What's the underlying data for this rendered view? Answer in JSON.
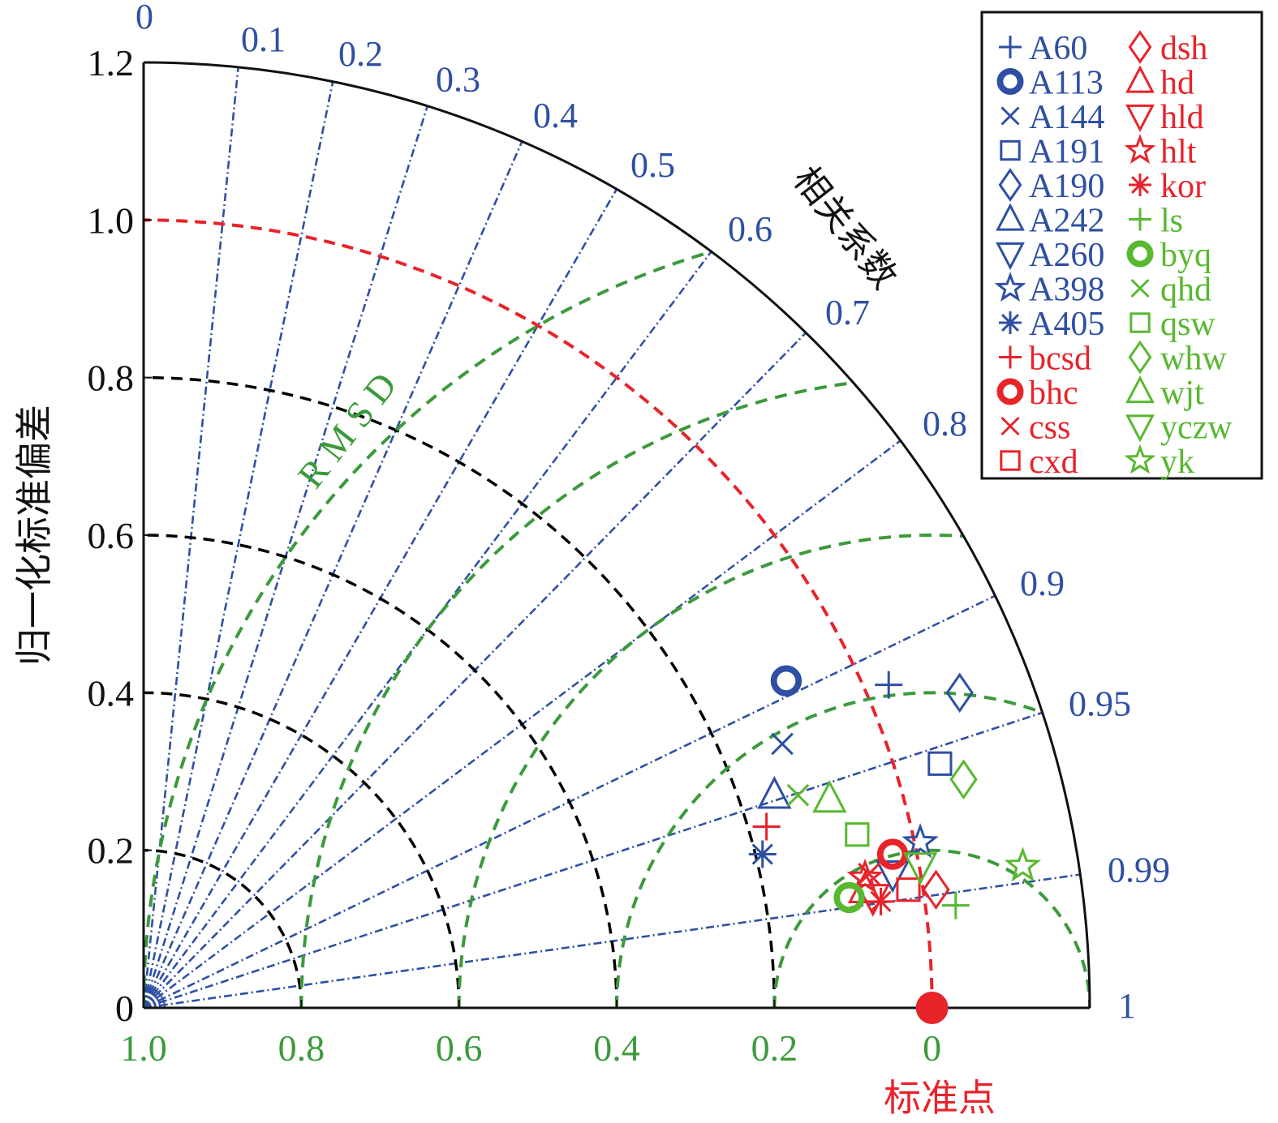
{
  "chart_data": {
    "type": "scatter",
    "subtype": "taylor-diagram",
    "ylabel": "归一化标准偏差",
    "corr_axis_label": "相关系数",
    "rmsd_label": "R M S D",
    "ref_label": "标准点",
    "reference_point": {
      "std": 1.0,
      "corr": 1.0,
      "color": "#e8232a"
    },
    "std_max": 1.2,
    "std_ticks": [
      "0",
      "0.2",
      "0.4",
      "0.6",
      "0.8",
      "1.0",
      "1.2"
    ],
    "std_tick_values": [
      0,
      0.2,
      0.4,
      0.6,
      0.8,
      1.0,
      1.2
    ],
    "corr_ticks": [
      "0",
      "0.1",
      "0.2",
      "0.3",
      "0.4",
      "0.5",
      "0.6",
      "0.7",
      "0.8",
      "0.9",
      "0.95",
      "0.99",
      "1"
    ],
    "corr_tick_values": [
      0,
      0.1,
      0.2,
      0.3,
      0.4,
      0.5,
      0.6,
      0.7,
      0.8,
      0.9,
      0.95,
      0.99,
      1
    ],
    "rmsd_ticks": [
      "1.0",
      "0.8",
      "0.6",
      "0.4",
      "0.2",
      "0"
    ],
    "rmsd_tick_values": [
      1.0,
      0.8,
      0.6,
      0.4,
      0.2,
      0
    ],
    "rmsd_arcs": [
      0.2,
      0.4,
      0.6,
      0.8,
      1.0
    ],
    "std_arcs": [
      0.2,
      0.4,
      0.6,
      0.8
    ],
    "colors": {
      "blue": "#2e4fa3",
      "red": "#e8232a",
      "green": "#58b830",
      "rmsd": "#3b9a3b",
      "black": "#000000"
    },
    "series": [
      {
        "name": "A60",
        "group": "blue",
        "marker": "plus",
        "x": 0.945,
        "y": 0.41
      },
      {
        "name": "A113",
        "group": "blue",
        "marker": "circle-bold",
        "x": 0.815,
        "y": 0.415
      },
      {
        "name": "A144",
        "group": "blue",
        "marker": "x",
        "x": 0.81,
        "y": 0.335
      },
      {
        "name": "A191",
        "group": "blue",
        "marker": "square",
        "x": 1.01,
        "y": 0.31
      },
      {
        "name": "A190",
        "group": "blue",
        "marker": "diamond",
        "x": 1.035,
        "y": 0.4
      },
      {
        "name": "A242",
        "group": "blue",
        "marker": "triangle",
        "x": 0.8,
        "y": 0.27
      },
      {
        "name": "A260",
        "group": "blue",
        "marker": "tri-down",
        "x": 0.95,
        "y": 0.17
      },
      {
        "name": "A398",
        "group": "blue",
        "marker": "star",
        "x": 0.985,
        "y": 0.21
      },
      {
        "name": "A405",
        "group": "blue",
        "marker": "asterisk",
        "x": 0.785,
        "y": 0.195
      },
      {
        "name": "bcsd",
        "group": "red",
        "marker": "plus",
        "x": 0.79,
        "y": 0.23
      },
      {
        "name": "bhc",
        "group": "red",
        "marker": "circle-bold",
        "x": 0.95,
        "y": 0.195
      },
      {
        "name": "css",
        "group": "red",
        "marker": "x",
        "x": 0.92,
        "y": 0.17
      },
      {
        "name": "cxd",
        "group": "red",
        "marker": "square",
        "x": 0.97,
        "y": 0.15
      },
      {
        "name": "dsh",
        "group": "red",
        "marker": "diamond",
        "x": 1.005,
        "y": 0.15
      },
      {
        "name": "hd",
        "group": "red",
        "marker": "triangle",
        "x": 0.915,
        "y": 0.15
      },
      {
        "name": "hld",
        "group": "red",
        "marker": "tri-down",
        "x": 0.925,
        "y": 0.14
      },
      {
        "name": "hlt",
        "group": "red",
        "marker": "star",
        "x": 0.915,
        "y": 0.165
      },
      {
        "name": "kor",
        "group": "red",
        "marker": "asterisk",
        "x": 0.935,
        "y": 0.135
      },
      {
        "name": "ls",
        "group": "green",
        "marker": "plus",
        "x": 1.03,
        "y": 0.13
      },
      {
        "name": "byq",
        "group": "green",
        "marker": "circle-bold",
        "x": 0.895,
        "y": 0.14
      },
      {
        "name": "qhd",
        "group": "green",
        "marker": "x",
        "x": 0.83,
        "y": 0.27
      },
      {
        "name": "qsw",
        "group": "green",
        "marker": "square",
        "x": 0.905,
        "y": 0.22
      },
      {
        "name": "whw",
        "group": "green",
        "marker": "diamond",
        "x": 1.04,
        "y": 0.29
      },
      {
        "name": "wjt",
        "group": "green",
        "marker": "triangle",
        "x": 0.87,
        "y": 0.265
      },
      {
        "name": "yczw",
        "group": "green",
        "marker": "tri-down",
        "x": 0.985,
        "y": 0.18
      },
      {
        "name": "yk",
        "group": "green",
        "marker": "star",
        "x": 1.115,
        "y": 0.18
      }
    ],
    "legend_position": "top-right",
    "legend_columns": [
      [
        "A60",
        "A113",
        "A144",
        "A191",
        "A190",
        "A242",
        "A260",
        "A398",
        "A405",
        "bcsd",
        "bhc",
        "css",
        "cxd"
      ],
      [
        "dsh",
        "hd",
        "hld",
        "hlt",
        "kor",
        "ls",
        "byq",
        "qhd",
        "qsw",
        "whw",
        "wjt",
        "yczw",
        "yk"
      ]
    ]
  }
}
